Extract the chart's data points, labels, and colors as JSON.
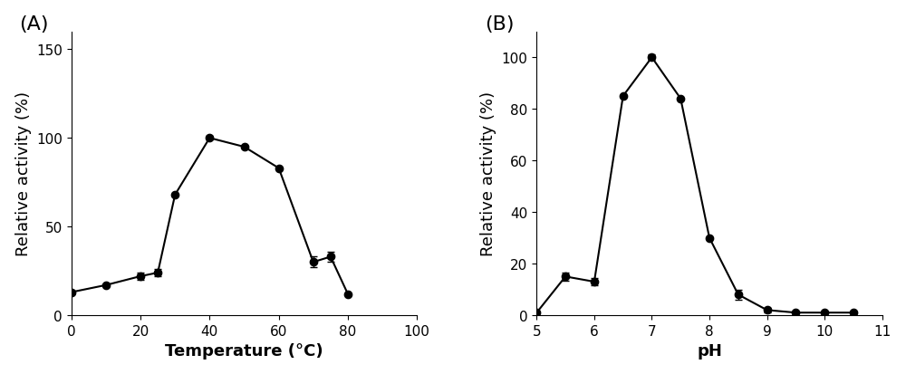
{
  "panel_A": {
    "label": "(A)",
    "x": [
      0,
      10,
      20,
      25,
      30,
      40,
      50,
      60,
      70,
      75,
      80
    ],
    "y": [
      13,
      17,
      22,
      24,
      68,
      100,
      95,
      83,
      30,
      33,
      12
    ],
    "yerr": [
      0,
      0,
      2,
      2,
      0,
      1,
      0,
      0,
      3,
      3,
      0
    ],
    "xlabel": "Temperature (°C)",
    "ylabel": "Relative activity (%)",
    "xlim": [
      0,
      100
    ],
    "ylim": [
      0,
      160
    ],
    "xticks": [
      0,
      20,
      40,
      60,
      80,
      100
    ],
    "yticks": [
      0,
      50,
      100,
      150
    ]
  },
  "panel_B": {
    "label": "(B)",
    "x": [
      5.0,
      5.5,
      6.0,
      6.5,
      7.0,
      7.5,
      8.0,
      8.5,
      9.0,
      9.5,
      10.0,
      10.5
    ],
    "y": [
      1,
      15,
      13,
      85,
      100,
      84,
      30,
      8,
      2,
      1,
      1,
      1
    ],
    "yerr": [
      0,
      1.5,
      1.5,
      0,
      1,
      0,
      0,
      2,
      1,
      0,
      0,
      0
    ],
    "xlabel": "pH",
    "ylabel": "Relative activity (%)",
    "xlim": [
      5,
      11
    ],
    "ylim": [
      0,
      110
    ],
    "xticks": [
      5,
      6,
      7,
      8,
      9,
      10,
      11
    ],
    "yticks": [
      0,
      20,
      40,
      60,
      80,
      100
    ]
  },
  "line_color": "#000000",
  "marker": "o",
  "markersize": 6,
  "linewidth": 1.5,
  "capsize": 3,
  "label_fontsize": 13,
  "tick_fontsize": 11,
  "panel_label_fontsize": 16,
  "background_color": "#ffffff"
}
